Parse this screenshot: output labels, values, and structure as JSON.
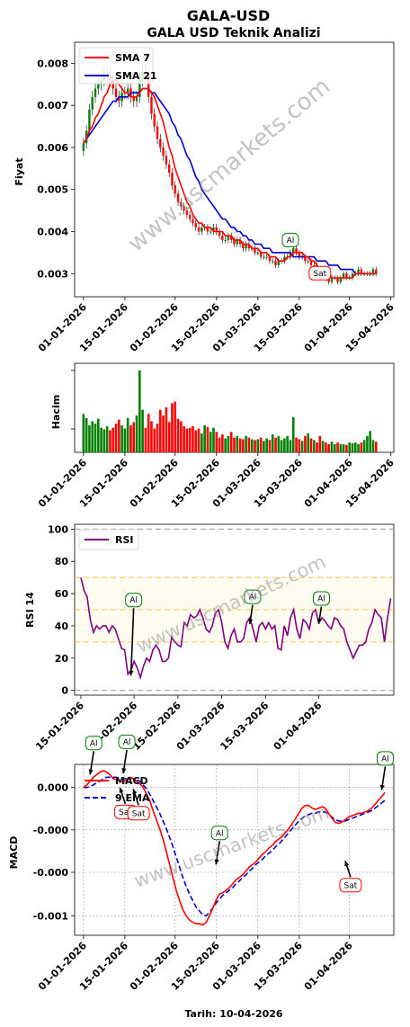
{
  "title": "GALA-USD",
  "subtitle": "GALA USD Teknik Analizi",
  "watermark": "www.uscmarkets.com",
  "footer": "Tarih: 10-04-2026",
  "colors": {
    "up": "#008000",
    "down": "#ff0000",
    "sma7": "#ff0000",
    "sma21": "#0000cd",
    "rsi": "#800080",
    "macd": "#ff0000",
    "ema9": "#0000cd",
    "band": "#f5dc8c",
    "buyBorder": "#008000",
    "sellBorder": "#ff0000"
  },
  "chart_data": [
    {
      "type": "line",
      "name": "price",
      "ylabel": "Fiyat",
      "ylim": [
        0.00245,
        0.0085
      ],
      "xlim": [
        -3,
        105
      ],
      "start_date": "01-01-2026",
      "x_ticks": [
        "01-01-2026",
        "15-01-2026",
        "01-02-2026",
        "15-02-2026",
        "01-03-2026",
        "15-03-2026",
        "01-04-2026",
        "15-04-2026"
      ],
      "y_ticks": [
        "0.003",
        "0.004",
        "0.005",
        "0.006",
        "0.007",
        "0.008"
      ],
      "legend": [
        "SMA 7",
        "SMA 21"
      ],
      "legend_position": "top-left",
      "close": [
        0.0061,
        0.0064,
        0.0069,
        0.0072,
        0.0074,
        0.0075,
        0.0076,
        0.0077,
        0.0077,
        0.0076,
        0.0074,
        0.0072,
        0.0071,
        0.0073,
        0.0073,
        0.0074,
        0.0072,
        0.0071,
        0.0072,
        0.0076,
        0.0078,
        0.0077,
        0.0072,
        0.0068,
        0.0065,
        0.0062,
        0.006,
        0.0058,
        0.0056,
        0.0054,
        0.0051,
        0.0049,
        0.0047,
        0.0046,
        0.0045,
        0.0044,
        0.0043,
        0.0042,
        0.0041,
        0.004,
        0.0041,
        0.0041,
        0.004,
        0.004,
        0.0041,
        0.004,
        0.0039,
        0.0038,
        0.0038,
        0.0039,
        0.0038,
        0.0037,
        0.0038,
        0.0037,
        0.0036,
        0.0037,
        0.0036,
        0.0036,
        0.0035,
        0.0035,
        0.0034,
        0.0034,
        0.0034,
        0.0033,
        0.0033,
        0.0032,
        0.0033,
        0.0033,
        0.0034,
        0.0034,
        0.0035,
        0.0036,
        0.0035,
        0.0034,
        0.0034,
        0.0033,
        0.0033,
        0.0032,
        0.0032,
        0.0031,
        0.003,
        0.0031,
        0.0029,
        0.0028,
        0.0029,
        0.0029,
        0.0028,
        0.0029,
        0.003,
        0.0029,
        0.0029,
        0.003,
        0.003,
        0.0031,
        0.003,
        0.003,
        0.003,
        0.003,
        0.0031,
        0.003
      ],
      "sma7": [
        0.0061,
        0.0062,
        0.0064,
        0.0065,
        0.0067,
        0.0068,
        0.007,
        0.0072,
        0.0073,
        0.0075,
        0.0076,
        0.0076,
        0.0075,
        0.0074,
        0.0073,
        0.0073,
        0.0072,
        0.0072,
        0.0072,
        0.0073,
        0.0074,
        0.0074,
        0.0074,
        0.0073,
        0.0072,
        0.007,
        0.0068,
        0.0066,
        0.0063,
        0.006,
        0.0058,
        0.0055,
        0.0053,
        0.0051,
        0.0049,
        0.0047,
        0.0046,
        0.0044,
        0.0043,
        0.0042,
        0.0042,
        0.0041,
        0.0041,
        0.0041,
        0.004,
        0.004,
        0.004,
        0.004,
        0.0039,
        0.0039,
        0.0039,
        0.0038,
        0.0038,
        0.0038,
        0.0037,
        0.0037,
        0.0037,
        0.0036,
        0.0036,
        0.0036,
        0.0035,
        0.0035,
        0.0035,
        0.0034,
        0.0034,
        0.0034,
        0.0033,
        0.0033,
        0.0033,
        0.0034,
        0.0034,
        0.0035,
        0.0035,
        0.0035,
        0.0035,
        0.0034,
        0.0034,
        0.0033,
        0.0033,
        0.0032,
        0.0031,
        0.0031,
        0.003,
        0.003,
        0.0029,
        0.0029,
        0.0029,
        0.0029,
        0.0029,
        0.0029,
        0.0029,
        0.0029,
        0.003,
        0.003,
        0.003,
        0.003,
        0.003,
        0.003,
        0.003,
        0.003
      ],
      "sma21": [
        0.0061,
        0.0062,
        0.0063,
        0.0064,
        0.0065,
        0.0066,
        0.0067,
        0.0068,
        0.0069,
        0.007,
        0.0071,
        0.0071,
        0.0072,
        0.0072,
        0.0072,
        0.0072,
        0.0073,
        0.0073,
        0.0073,
        0.0073,
        0.0074,
        0.0074,
        0.0074,
        0.0073,
        0.0073,
        0.0072,
        0.0071,
        0.007,
        0.0069,
        0.0068,
        0.0066,
        0.0065,
        0.0063,
        0.0062,
        0.006,
        0.0058,
        0.0057,
        0.0055,
        0.0053,
        0.0052,
        0.005,
        0.0049,
        0.0048,
        0.0047,
        0.0046,
        0.0045,
        0.0044,
        0.0043,
        0.0043,
        0.0042,
        0.0041,
        0.0041,
        0.004,
        0.004,
        0.0039,
        0.0039,
        0.0038,
        0.0038,
        0.0037,
        0.0037,
        0.0037,
        0.0036,
        0.0036,
        0.0036,
        0.0035,
        0.0035,
        0.0035,
        0.0035,
        0.0035,
        0.0035,
        0.0035,
        0.0034,
        0.0034,
        0.0034,
        0.0034,
        0.0034,
        0.0034,
        0.0034,
        0.0034,
        0.0033,
        0.0033,
        0.0033,
        0.0033,
        0.0032,
        0.0032,
        0.0032,
        0.0032,
        0.0031,
        0.0031,
        0.0031,
        0.0031,
        0.0031,
        0.003,
        0.003,
        0.003,
        0.003,
        0.003,
        0.003,
        0.003,
        0.003
      ],
      "signals": [
        {
          "index": 70,
          "label": "Al",
          "y": 0.0038
        },
        {
          "index": 80,
          "label": "Sat",
          "y": 0.00301
        }
      ]
    },
    {
      "type": "bar",
      "name": "volume",
      "ylabel": "Hacim",
      "x_ticks": [
        "01-01-2026",
        "15-01-2026",
        "01-02-2026",
        "15-02-2026",
        "01-03-2026",
        "15-03-2026",
        "01-04-2026",
        "15-04-2026"
      ],
      "values": [
        0.47,
        0.42,
        0.33,
        0.38,
        0.35,
        0.41,
        0.3,
        0.28,
        0.32,
        0.27,
        0.3,
        0.35,
        0.4,
        0.33,
        0.29,
        0.42,
        0.33,
        0.37,
        0.45,
        1.0,
        0.52,
        0.3,
        0.47,
        0.38,
        0.29,
        0.35,
        0.52,
        0.45,
        0.55,
        0.37,
        0.6,
        0.62,
        0.41,
        0.38,
        0.32,
        0.29,
        0.3,
        0.32,
        0.27,
        0.29,
        0.23,
        0.33,
        0.31,
        0.25,
        0.3,
        0.25,
        0.18,
        0.22,
        0.17,
        0.2,
        0.25,
        0.18,
        0.2,
        0.17,
        0.16,
        0.2,
        0.18,
        0.16,
        0.15,
        0.16,
        0.18,
        0.14,
        0.17,
        0.15,
        0.22,
        0.18,
        0.2,
        0.15,
        0.17,
        0.2,
        0.15,
        0.43,
        0.18,
        0.16,
        0.14,
        0.2,
        0.23,
        0.17,
        0.15,
        0.12,
        0.2,
        0.14,
        0.12,
        0.1,
        0.13,
        0.1,
        0.12,
        0.1,
        0.1,
        0.09,
        0.12,
        0.11,
        0.12,
        0.1,
        0.12,
        0.15,
        0.2,
        0.26,
        0.15,
        0.13
      ]
    },
    {
      "type": "line",
      "name": "rsi",
      "ylabel": "RSI 14",
      "ylim": [
        -3,
        103
      ],
      "xlim": [
        -2,
        100
      ],
      "x_ticks": [
        "15-01-2026",
        "01-02-2026",
        "15-02-2026",
        "01-03-2026",
        "15-03-2026",
        "01-04-2026"
      ],
      "y_ticks": [
        "0",
        "20",
        "40",
        "60",
        "80",
        "100"
      ],
      "legend": [
        "RSI"
      ],
      "legend_position": "top-left",
      "levels": [
        30,
        50,
        70
      ],
      "values": [
        70,
        62,
        58,
        44,
        36,
        40,
        38,
        40,
        40,
        36,
        40,
        38,
        32,
        26,
        25,
        10,
        12,
        18,
        14,
        8,
        15,
        20,
        18,
        25,
        28,
        25,
        18,
        18,
        20,
        33,
        30,
        28,
        27,
        42,
        40,
        47,
        45,
        46,
        50,
        45,
        38,
        36,
        40,
        48,
        50,
        42,
        30,
        26,
        34,
        38,
        30,
        30,
        32,
        42,
        45,
        38,
        30,
        40,
        42,
        38,
        42,
        38,
        40,
        26,
        25,
        40,
        34,
        45,
        50,
        38,
        32,
        44,
        42,
        38,
        48,
        50,
        42,
        45,
        43,
        40,
        38,
        45,
        44,
        40,
        38,
        30,
        25,
        20,
        24,
        28,
        28,
        30,
        38,
        42,
        50,
        47,
        45,
        30,
        45,
        57
      ],
      "signals": [
        {
          "index": 16,
          "label": "Al",
          "y": 56
        },
        {
          "index": 54,
          "label": "Al",
          "y": 58
        },
        {
          "index": 76,
          "label": "Al",
          "y": 57
        }
      ]
    },
    {
      "type": "line",
      "name": "macd",
      "ylabel": "MACD",
      "xlabel": "Tarih: 10-04-2026",
      "ylim": [
        -0.00115,
        0.00018
      ],
      "xlim": [
        -3,
        105
      ],
      "x_ticks": [
        "01-01-2026",
        "15-01-2026",
        "01-02-2026",
        "15-02-2026",
        "01-03-2026",
        "15-03-2026",
        "01-04-2026"
      ],
      "y_ticks": [
        "0.000",
        "-0.000",
        "-0.000",
        "-0.001"
      ],
      "legend": [
        "MACD",
        "9 EMA"
      ],
      "legend_position": "top-left",
      "macd": [
        0.0,
        2e-05,
        5e-05,
        8e-05,
        0.0001,
        0.00012,
        0.00013,
        0.00012,
        0.0001,
        7e-05,
        6e-05,
        5e-05,
        4e-05,
        6e-05,
        8e-05,
        7e-05,
        5e-05,
        3e-05,
        0.0,
        -5e-05,
        -0.0001,
        -0.00018,
        -0.00025,
        -0.00032,
        -0.0004,
        -0.0005,
        -0.0006,
        -0.0007,
        -0.0008,
        -0.00088,
        -0.00095,
        -0.001,
        -0.00103,
        -0.00105,
        -0.00106,
        -0.00106,
        -0.00107,
        -0.00105,
        -0.001,
        -0.00094,
        -0.00088,
        -0.00083,
        -0.00082,
        -0.0008,
        -0.00078,
        -0.00075,
        -0.00072,
        -0.0007,
        -0.00068,
        -0.00065,
        -0.00062,
        -0.0006,
        -0.00058,
        -0.00055,
        -0.00052,
        -0.0005,
        -0.00047,
        -0.00045,
        -0.00042,
        -0.0004,
        -0.00038,
        -0.00035,
        -0.00032,
        -0.00028,
        -0.00024,
        -0.0002,
        -0.00016,
        -0.00014,
        -0.00014,
        -0.00016,
        -0.00017,
        -0.00016,
        -0.00015,
        -0.00016,
        -0.0002,
        -0.00024,
        -0.00027,
        -0.00028,
        -0.00027,
        -0.00025,
        -0.00023,
        -0.00022,
        -0.00021,
        -0.0002,
        -0.0002,
        -0.00019,
        -0.00018,
        -0.00016,
        -0.00013,
        -0.0001,
        -7e-05,
        -4e-05
      ],
      "ema9": [
        0.0,
        0.0,
        1e-05,
        2e-05,
        4e-05,
        5e-05,
        7e-05,
        8e-05,
        8e-05,
        8e-05,
        8e-05,
        7e-05,
        7e-05,
        7e-05,
        7e-05,
        7e-05,
        6e-05,
        5e-05,
        2e-05,
        -1e-05,
        -5e-05,
        -0.0001,
        -0.00015,
        -0.0002,
        -0.00026,
        -0.00032,
        -0.00039,
        -0.00046,
        -0.00054,
        -0.00062,
        -0.0007,
        -0.00077,
        -0.00083,
        -0.00088,
        -0.00093,
        -0.00096,
        -0.00099,
        -0.001,
        -0.00097,
        -0.00094,
        -0.0009,
        -0.00087,
        -0.00084,
        -0.00082,
        -0.0008,
        -0.00078,
        -0.00075,
        -0.00073,
        -0.0007,
        -0.00068,
        -0.00065,
        -0.00063,
        -0.0006,
        -0.00058,
        -0.00056,
        -0.00053,
        -0.00051,
        -0.00049,
        -0.00046,
        -0.00044,
        -0.00041,
        -0.00038,
        -0.00035,
        -0.00032,
        -0.00029,
        -0.00026,
        -0.00024,
        -0.00022,
        -0.00021,
        -0.0002,
        -0.0002,
        -0.00019,
        -0.00019,
        -0.00019,
        -0.00021,
        -0.00023,
        -0.00025,
        -0.00026,
        -0.00026,
        -0.00026,
        -0.00025,
        -0.00024,
        -0.00023,
        -0.00022,
        -0.00021,
        -0.0002,
        -0.00019,
        -0.00018,
        -0.00016,
        -0.00014,
        -0.00012,
        -0.0001
      ],
      "signals": [
        {
          "index": 2,
          "label": "Al",
          "y": 8e-05,
          "pos": "above"
        },
        {
          "index": 12,
          "label": "Al",
          "y": 9e-05,
          "pos": "above"
        },
        {
          "index": 11,
          "label": "Sat",
          "y": 2e-05,
          "pos": "below"
        },
        {
          "index": 15,
          "label": "Sat",
          "y": 1e-05,
          "pos": "below"
        },
        {
          "index": 40,
          "label": "Al",
          "y": -0.00062,
          "pos": "above"
        },
        {
          "index": 79,
          "label": "Sat",
          "y": -0.00055,
          "pos": "below"
        },
        {
          "index": 90,
          "label": "Al",
          "y": -4e-05,
          "pos": "above"
        }
      ]
    }
  ]
}
